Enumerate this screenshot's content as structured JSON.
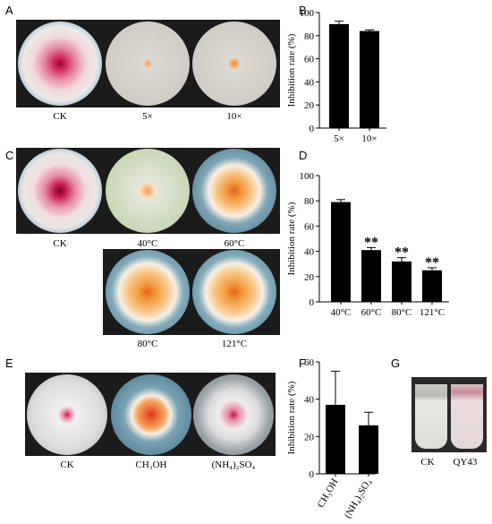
{
  "panels": {
    "A": {
      "letter": "A",
      "labels": [
        "CK",
        "5×",
        "10×"
      ]
    },
    "B": {
      "letter": "B"
    },
    "C": {
      "letter": "C",
      "labels": [
        "CK",
        "40°C",
        "60°C",
        "80°C",
        "121°C"
      ]
    },
    "D": {
      "letter": "D"
    },
    "E": {
      "letter": "E",
      "labels": [
        "CK",
        "CH₃OH",
        "(NH₄)₂SO₄"
      ]
    },
    "F": {
      "letter": "F"
    },
    "G": {
      "letter": "G",
      "labels": [
        "CK",
        "QY43"
      ]
    }
  },
  "colors": {
    "bar": "#000000",
    "ck_center": "#c8174f",
    "ck_edge": "#2a6f9c",
    "colony_orange": "#f29a3c"
  },
  "chart_data": [
    {
      "type": "bar",
      "panel": "B",
      "categories": [
        "5×",
        "10×"
      ],
      "values": [
        90,
        84
      ],
      "errors": [
        2.5,
        1.0
      ],
      "ylabel": "Inhibition rate (%)",
      "xlabel": "",
      "ylim": [
        0,
        100
      ],
      "yticks": [
        0,
        20,
        40,
        60,
        80,
        100
      ]
    },
    {
      "type": "bar",
      "panel": "D",
      "categories": [
        "40°C",
        "60°C",
        "80°C",
        "121°C"
      ],
      "values": [
        79,
        41,
        32,
        25
      ],
      "errors": [
        2,
        2,
        3,
        2
      ],
      "significance": [
        "",
        "**",
        "**",
        "**"
      ],
      "ylabel": "Inhibition rate (%)",
      "xlabel": "",
      "ylim": [
        0,
        100
      ],
      "yticks": [
        0,
        20,
        40,
        60,
        80,
        100
      ]
    },
    {
      "type": "bar",
      "panel": "F",
      "categories": [
        "CH₃OH",
        "(NH₄)₂SO₄"
      ],
      "values": [
        37,
        26
      ],
      "errors": [
        18,
        7
      ],
      "ylabel": "Inhibition rate (%)",
      "xlabel": "",
      "ylim": [
        0,
        60
      ],
      "yticks": [
        0,
        20,
        40,
        60
      ]
    }
  ]
}
